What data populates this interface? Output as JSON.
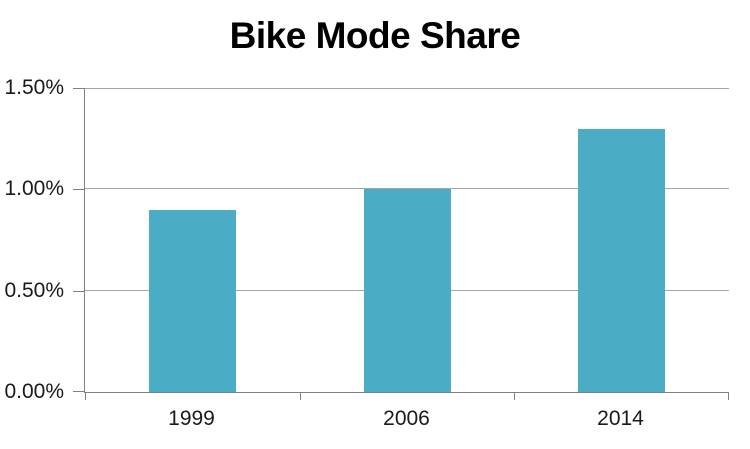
{
  "chart_data": {
    "type": "bar",
    "title": "Bike Mode Share",
    "categories": [
      "1999",
      "2006",
      "2014"
    ],
    "values": [
      0.9,
      1.0,
      1.3
    ],
    "unit": "%",
    "xlabel": "",
    "ylabel": "",
    "ylim": [
      0,
      1.5
    ],
    "yticks": [
      {
        "value": 0,
        "label": "0.00%"
      },
      {
        "value": 0.5,
        "label": "0.50%"
      },
      {
        "value": 1,
        "label": "1.00%"
      },
      {
        "value": 1.5,
        "label": "1.50%"
      }
    ],
    "grid": true,
    "legend": false,
    "colors": {
      "bar": "#4BACC6",
      "axis": "#808080",
      "gridline": "#A6A6A6",
      "tick_text": "#1A1A1A",
      "title_text": "#000000",
      "background": "#FFFFFF"
    }
  }
}
